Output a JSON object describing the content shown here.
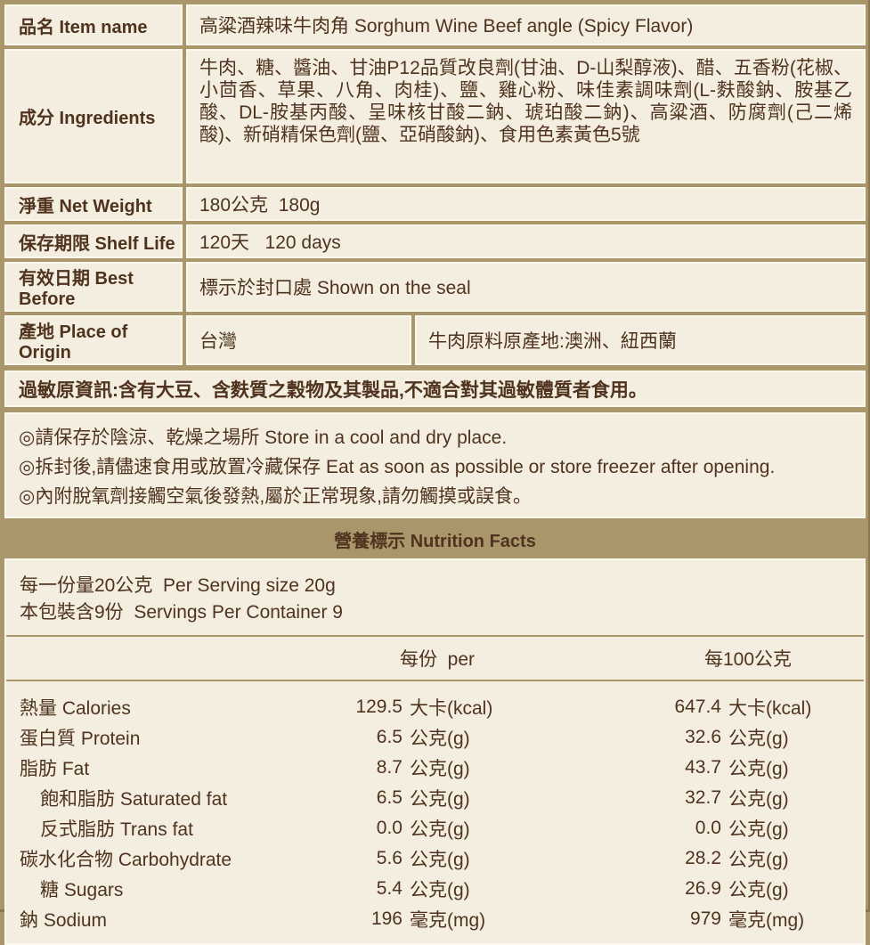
{
  "colors": {
    "page_background": "#A9976B",
    "panel_background": "#F3EEDF",
    "text": "#4F331F"
  },
  "info_table": {
    "rows": [
      {
        "id": "name",
        "label": "品名 Item name",
        "value": "高粱酒辣味牛肉角 Sorghum Wine Beef angle (Spicy Flavor)"
      },
      {
        "id": "ingredients",
        "label": "成分 Ingredients",
        "value": "牛肉、糖、醬油、甘油P12品質改良劑(甘油、D-山梨醇液)、醋、五香粉(花椒、小茴香、草果、八角、肉桂)、鹽、雞心粉、味佳素調味劑(L-麩酸鈉、胺基乙酸、DL-胺基丙酸、呈味核甘酸二鈉、琥珀酸二鈉)、高粱酒、防腐劑(己二烯酸)、新硝精保色劑(鹽、亞硝酸鈉)、食用色素黃色5號"
      },
      {
        "id": "netweight",
        "label": "淨重 Net Weight",
        "value": "180公克  180g"
      },
      {
        "id": "shelflife",
        "label": "保存期限 Shelf Life",
        "value": "120天   120 days"
      },
      {
        "id": "bestbefore",
        "label": "有效日期 Best Before",
        "value": "標示於封口處 Shown on the seal"
      },
      {
        "id": "origin",
        "label": "產地 Place of Origin",
        "value": "台灣",
        "value2": "牛肉原料原產地:澳洲、紐西蘭"
      }
    ]
  },
  "allergen": {
    "text": "過敏原資訊:含有大豆、含麩質之穀物及其製品,不適合對其過敏體質者食用。"
  },
  "storage": {
    "notes": [
      "◎請保存於陰涼、乾燥之場所 Store in a cool and dry place.",
      "◎拆封後,請儘速食用或放置冷藏保存 Eat as soon as possible or store freezer after opening.",
      "◎內附脫氧劑接觸空氣後發熱,屬於正常現象,請勿觸摸或誤食。"
    ]
  },
  "nutrition": {
    "title": "營養標示 Nutrition Facts",
    "serving_line_1": "每一份量20公克  Per Serving size 20g",
    "serving_line_2": "本包裝含9份  Servings Per Container 9",
    "col_headers": [
      "每份  per",
      "每100公克"
    ],
    "rows": [
      {
        "label": "熱量 Calories",
        "indent": false,
        "v1": "129.5",
        "u1": "大卡(kcal)",
        "v2": "647.4",
        "u2": "大卡(kcal)"
      },
      {
        "label": "蛋白質 Protein",
        "indent": false,
        "v1": "6.5",
        "u1": "公克(g)",
        "v2": "32.6",
        "u2": "公克(g)"
      },
      {
        "label": "脂肪 Fat",
        "indent": false,
        "v1": "8.7",
        "u1": "公克(g)",
        "v2": "43.7",
        "u2": "公克(g)"
      },
      {
        "label": "飽和脂肪 Saturated fat",
        "indent": true,
        "v1": "6.5",
        "u1": "公克(g)",
        "v2": "32.7",
        "u2": "公克(g)"
      },
      {
        "label": "反式脂肪 Trans fat",
        "indent": true,
        "v1": "0.0",
        "u1": "公克(g)",
        "v2": "0.0",
        "u2": "公克(g)"
      },
      {
        "label": "碳水化合物 Carbohydrate",
        "indent": false,
        "v1": "5.6",
        "u1": "公克(g)",
        "v2": "28.2",
        "u2": "公克(g)"
      },
      {
        "label": "糖 Sugars",
        "indent": true,
        "v1": "5.4",
        "u1": "公克(g)",
        "v2": "26.9",
        "u2": "公克(g)"
      },
      {
        "label": "鈉 Sodium",
        "indent": false,
        "v1": "196",
        "u1": "毫克(mg)",
        "v2": "979",
        "u2": "毫克(mg)"
      }
    ]
  }
}
